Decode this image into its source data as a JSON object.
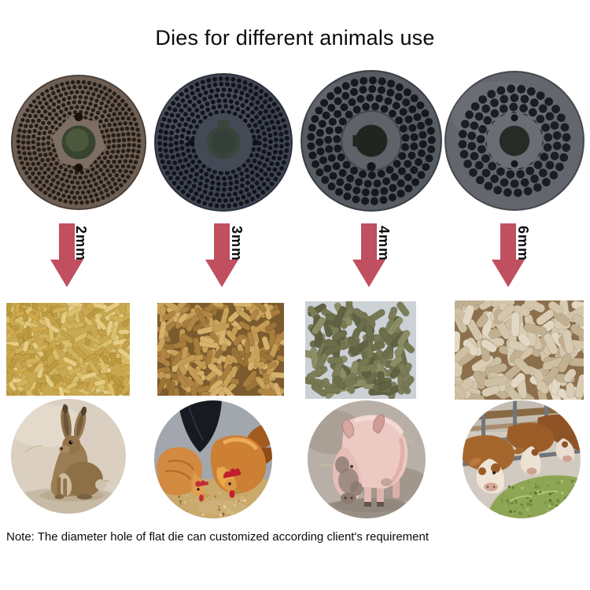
{
  "title": "Dies for different animals use",
  "note": "Note: The diameter hole of flat die can customized according client's requirement",
  "colors": {
    "arrow": "#c04f5f",
    "title_text": "#0b0b0b"
  },
  "columns": [
    {
      "hole_size": "2mm",
      "die": "flat-die-2mm",
      "pellets": "yellow-feed-pellets",
      "animal": "rabbit"
    },
    {
      "hole_size": "3mm",
      "die": "flat-die-3mm",
      "pellets": "golden-feed-pellets",
      "animal": "chickens"
    },
    {
      "hole_size": "4mm",
      "die": "flat-die-4mm",
      "pellets": "green-feed-pellets",
      "animal": "pig"
    },
    {
      "hole_size": "6mm",
      "die": "flat-die-6mm",
      "pellets": "beige-feed-pellets",
      "animal": "cattle"
    }
  ]
}
